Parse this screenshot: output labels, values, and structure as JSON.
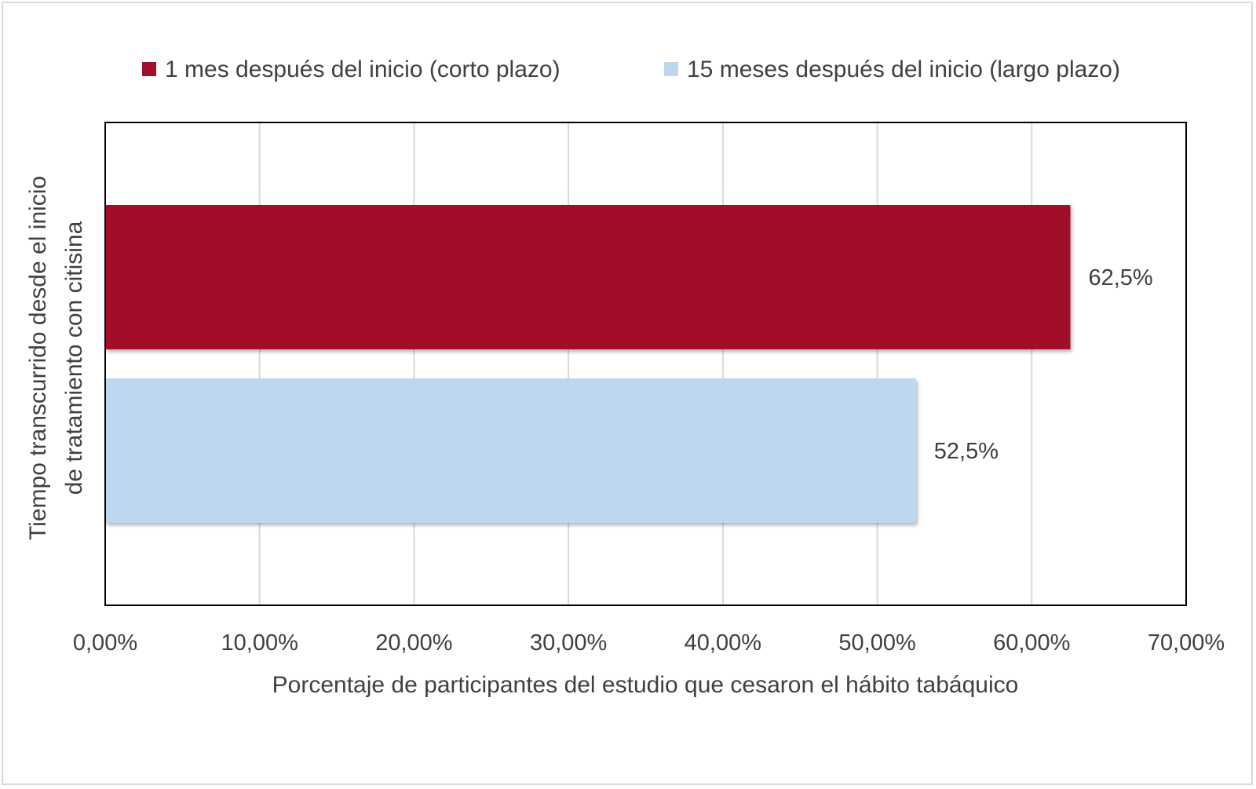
{
  "chart_data": {
    "type": "bar",
    "orientation": "horizontal",
    "xlabel": "Porcentaje de participantes del estudio que cesaron el hábito tabáquico",
    "ylabel_lines": [
      "Tiempo transcurrido desde el inicio",
      "de tratamiento con citisina"
    ],
    "xlim": [
      0,
      70
    ],
    "x_ticks": [
      0,
      10,
      20,
      30,
      40,
      50,
      60,
      70
    ],
    "x_tick_labels": [
      "0,00%",
      "10,00%",
      "20,00%",
      "30,00%",
      "40,00%",
      "50,00%",
      "60,00%",
      "70,00%"
    ],
    "grid": true,
    "legend_position": "top",
    "series": [
      {
        "name": "1 mes después del inicio (corto plazo)",
        "value": 62.5,
        "label": "62,5%",
        "color": "#a20f2c"
      },
      {
        "name": "15 meses después del inicio (largo plazo)",
        "value": 52.5,
        "label": "52,5%",
        "color": "#bdd7ee"
      }
    ]
  }
}
